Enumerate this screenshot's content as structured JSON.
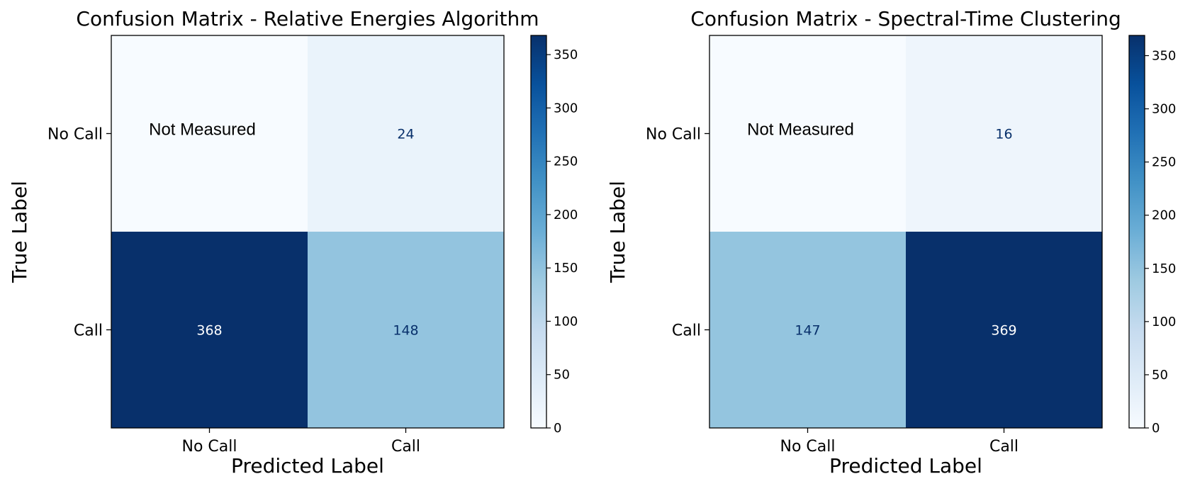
{
  "chart_data": [
    {
      "type": "heatmap",
      "title": "Confusion Matrix - Relative Energies Algorithm",
      "xlabel": "Predicted Label",
      "ylabel": "True Label",
      "x_categories": [
        "No Call",
        "Call"
      ],
      "y_categories": [
        "No Call",
        "Call"
      ],
      "values": [
        [
          null,
          24
        ],
        [
          368,
          148
        ]
      ],
      "annotations": [
        {
          "row": 0,
          "col": 0,
          "text": "Not Measured"
        }
      ],
      "colorbar": {
        "range": [
          0,
          368
        ],
        "ticks": [
          "0",
          "50",
          "100",
          "150",
          "200",
          "250",
          "300",
          "350"
        ]
      },
      "colormap": "Blues"
    },
    {
      "type": "heatmap",
      "title": "Confusion Matrix - Spectral-Time Clustering",
      "xlabel": "Predicted Label",
      "ylabel": "True Label",
      "x_categories": [
        "No Call",
        "Call"
      ],
      "y_categories": [
        "No Call",
        "Call"
      ],
      "values": [
        [
          null,
          16
        ],
        [
          147,
          369
        ]
      ],
      "annotations": [
        {
          "row": 0,
          "col": 0,
          "text": "Not Measured"
        }
      ],
      "colorbar": {
        "range": [
          0,
          369
        ],
        "ticks": [
          "0",
          "50",
          "100",
          "150",
          "200",
          "250",
          "300",
          "350"
        ]
      },
      "colormap": "Blues"
    }
  ]
}
